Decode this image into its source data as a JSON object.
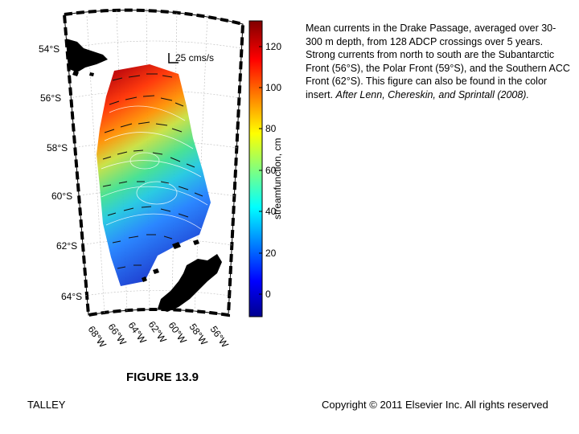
{
  "map": {
    "lat_labels": [
      "54°S",
      "56°S",
      "58°S",
      "60°S",
      "62°S",
      "64°S"
    ],
    "lon_labels": [
      "68°W",
      "66°W",
      "64°W",
      "62°W",
      "60°W",
      "58°W",
      "56°W"
    ],
    "scale_vector_label": "25 cms/s"
  },
  "colorbar": {
    "ticks": [
      "120",
      "100",
      "80",
      "60",
      "40",
      "20",
      "0"
    ],
    "title": "streamfunction, cm",
    "colors": [
      "#00008f",
      "#0040ff",
      "#00c0ff",
      "#40ffbf",
      "#bfff40",
      "#ffc000",
      "#ff4000",
      "#bf0000"
    ]
  },
  "caption": {
    "text": "Mean currents in the Drake Passage, averaged over 30-300 m depth, from 128 ADCP crossings over 5 years. Strong currents from north to south are the Subantarctic Front (56°S), the Polar Front (59°S), and the Southern ACC Front (62°S). This figure can also be found in the color insert.",
    "citation": "After Lenn, Chereskin, and Sprintall (2008)."
  },
  "figure_label": "FIGURE 13.9",
  "author": "TALLEY",
  "copyright": "Copyright © 2011 Elsevier Inc. All rights reserved"
}
